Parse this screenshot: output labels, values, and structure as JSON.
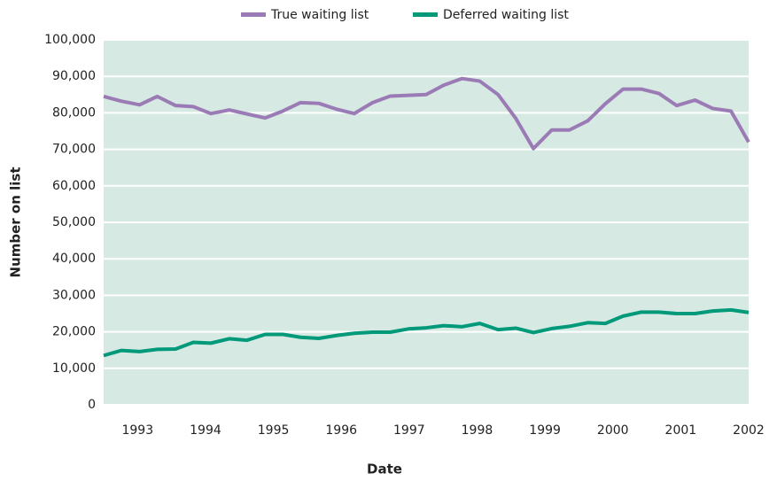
{
  "chart_data": {
    "type": "line",
    "xlabel": "Date",
    "ylabel": "Number on list",
    "x": [
      1992.5,
      1992.76,
      1993.03,
      1993.29,
      1993.56,
      1993.82,
      1994.08,
      1994.35,
      1994.61,
      1994.88,
      1995.14,
      1995.4,
      1995.67,
      1995.93,
      1996.19,
      1996.46,
      1996.72,
      1996.99,
      1997.25,
      1997.51,
      1997.78,
      1998.04,
      1998.31,
      1998.57,
      1998.83,
      1999.1,
      1999.36,
      1999.63,
      1999.89,
      2000.15,
      2000.42,
      2000.68,
      2000.94,
      2001.21,
      2001.47,
      2001.74,
      2002.0
    ],
    "series": [
      {
        "name": "True waiting list",
        "color": "#9b7bb5",
        "values": [
          84500,
          83200,
          82200,
          84500,
          82000,
          81700,
          79800,
          80800,
          79700,
          78600,
          80500,
          82800,
          82600,
          81000,
          79800,
          82800,
          84600,
          84800,
          85000,
          87600,
          89400,
          88700,
          85000,
          78500,
          70200,
          75300,
          75300,
          77800,
          82500,
          86500,
          86500,
          85300,
          82000,
          83500,
          81200,
          80500,
          72000
        ]
      },
      {
        "name": "Deferred waiting list",
        "color": "#00997a",
        "values": [
          13500,
          14900,
          14600,
          15200,
          15300,
          17100,
          16900,
          18100,
          17700,
          19300,
          19300,
          18500,
          18200,
          19000,
          19600,
          19900,
          19900,
          20800,
          21100,
          21700,
          21400,
          22300,
          20600,
          21000,
          19800,
          20900,
          21500,
          22500,
          22300,
          24300,
          25400,
          25400,
          25000,
          25000,
          25700,
          26000,
          25300
        ]
      }
    ],
    "xlim": [
      1992.5,
      2002
    ],
    "xticks": [
      1993,
      1994,
      1995,
      1996,
      1997,
      1998,
      1999,
      2000,
      2001,
      2002
    ],
    "ylim": [
      0,
      100000
    ],
    "yticks": [
      0,
      {
        "value": 10000,
        "label": "10,000"
      },
      {
        "value": 20000,
        "label": "20,000"
      },
      {
        "value": 30000,
        "label": "30,000"
      },
      {
        "value": 40000,
        "label": "40,000"
      },
      {
        "value": 50000,
        "label": "50,000"
      },
      {
        "value": 60000,
        "label": "60,000"
      },
      {
        "value": 70000,
        "label": "70,000"
      },
      {
        "value": 80000,
        "label": "80,000"
      },
      {
        "value": 90000,
        "label": "90,000"
      },
      {
        "value": 100000,
        "label": "100,000"
      }
    ],
    "grid": true,
    "plot_background": "#d6e9e2",
    "legend": "top"
  }
}
